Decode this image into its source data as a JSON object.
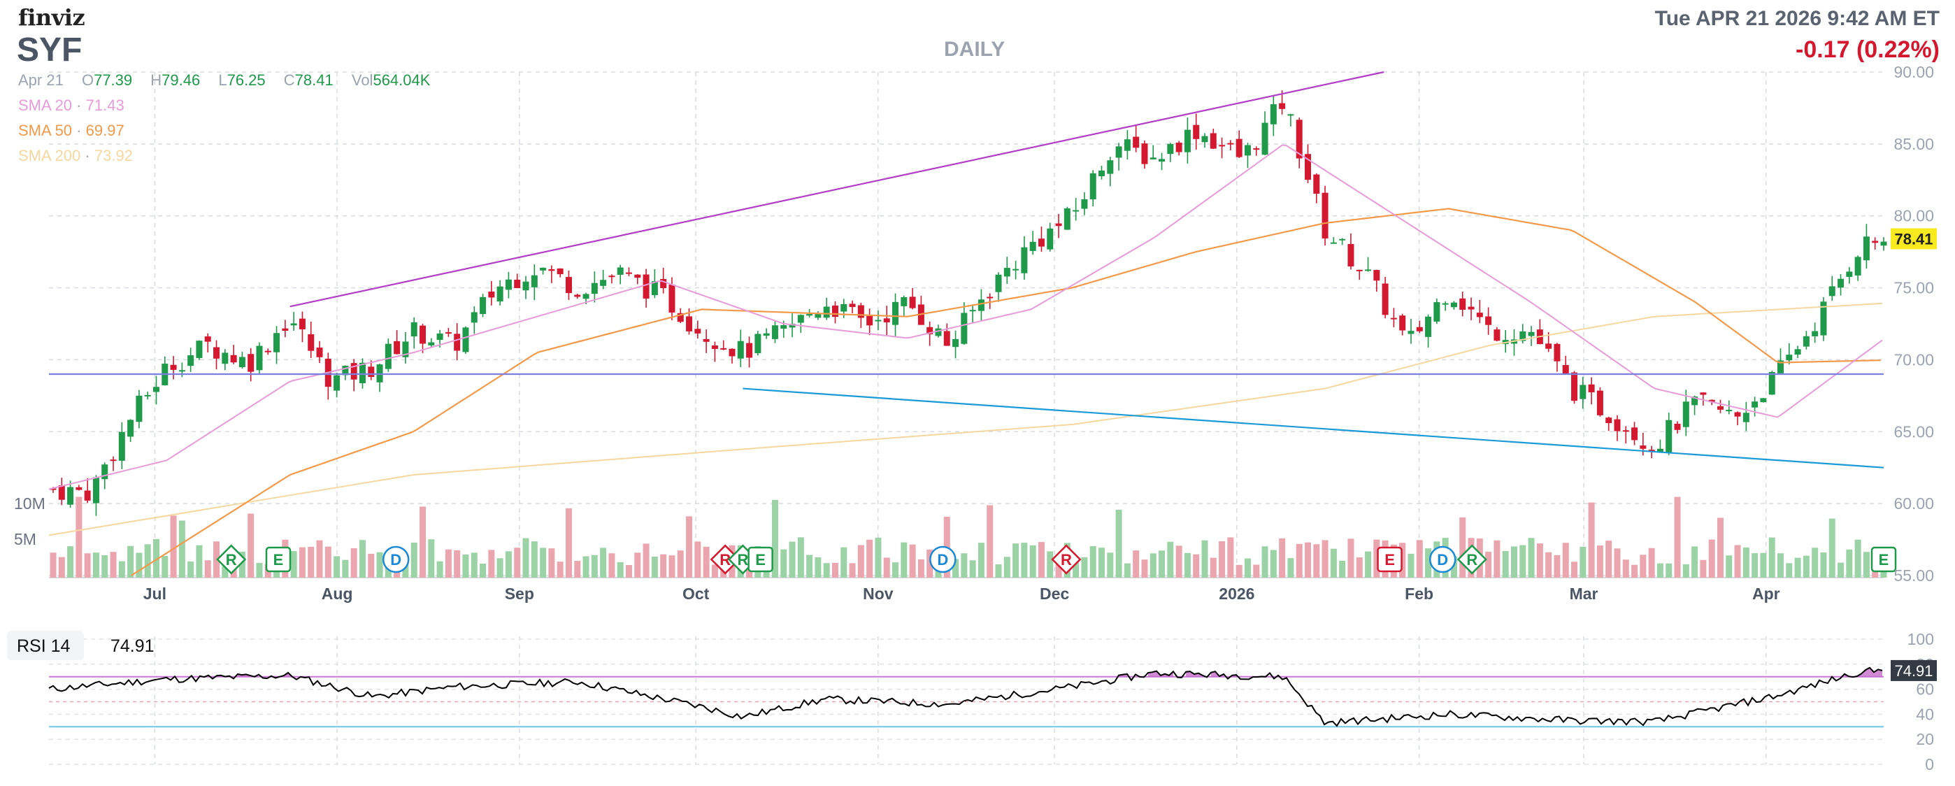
{
  "brand": "finviz",
  "ticker": "SYF",
  "period": "DAILY",
  "datetime": "Tue APR 21 2026 9:42 AM ET",
  "change": "-0.17 (0.22%)",
  "ohlc": {
    "date": "Apr 21",
    "open_label": "O",
    "open": "77.39",
    "high_label": "H",
    "high": "79.46",
    "low_label": "L",
    "low": "76.25",
    "close_label": "C",
    "close": "78.41",
    "vol_label": "Vol",
    "vol": "564.04K"
  },
  "smas": [
    {
      "label": "SMA 20",
      "sep": "·",
      "value": "71.43",
      "color": "#e79bd8"
    },
    {
      "label": "SMA 50",
      "sep": "·",
      "value": "69.97",
      "color": "#f39a4a"
    },
    {
      "label": "SMA 200",
      "sep": "·",
      "value": "73.92",
      "color": "#f5d7a0"
    }
  ],
  "rsi": {
    "label": "RSI 14",
    "value": "74.91"
  },
  "colors": {
    "up": "#1e9a4a",
    "down": "#d4182f",
    "vol_up": "#9bd3a6",
    "vol_down": "#eba5ae",
    "upper_trend": "#b33cc9",
    "lower_trend": "#1a9ad6",
    "horizontal": "#7b7fe0",
    "last_price_bg": "#f8ea1f",
    "rsi_line": "#000000",
    "rsi_fill": "#c264c6"
  },
  "chart_data": [
    {
      "type": "candlestick",
      "yaxis_ticks": [
        "90.00",
        "85.00",
        "80.00",
        "75.00",
        "70.00",
        "65.00",
        "60.00",
        "55.00"
      ],
      "ylim": [
        55,
        90
      ],
      "volume_ticks": [
        "10M",
        "5M"
      ],
      "xaxis_ticks": [
        "Jul",
        "Aug",
        "Sep",
        "Oct",
        "Nov",
        "Dec",
        "2026",
        "Feb",
        "Mar",
        "Apr"
      ],
      "last_price": "78.41",
      "series_close_anchors": [
        [
          "Jun 13",
          61.0
        ],
        [
          "Jun 20",
          60.8
        ],
        [
          "Jun 27",
          66.0
        ],
        [
          "Jul 3",
          69.5
        ],
        [
          "Jul 10",
          71.0
        ],
        [
          "Jul 17",
          69.8
        ],
        [
          "Jul 24",
          73.0
        ],
        [
          "Jul 31",
          68.5
        ],
        [
          "Aug 7",
          69.5
        ],
        [
          "Aug 14",
          72.0
        ],
        [
          "Aug 21",
          71.0
        ],
        [
          "Aug 28",
          75.0
        ],
        [
          "Sep 4",
          76.5
        ],
        [
          "Sep 11",
          75.0
        ],
        [
          "Sep 18",
          76.0
        ],
        [
          "Sep 25",
          74.5
        ],
        [
          "Oct 2",
          72.0
        ],
        [
          "Oct 9",
          70.5
        ],
        [
          "Oct 16",
          72.0
        ],
        [
          "Oct 23",
          74.0
        ],
        [
          "Oct 30",
          72.5
        ],
        [
          "Nov 6",
          74.0
        ],
        [
          "Nov 13",
          71.0
        ],
        [
          "Nov 20",
          75.0
        ],
        [
          "Nov 27",
          78.0
        ],
        [
          "Dec 4",
          80.0
        ],
        [
          "Dec 11",
          85.0
        ],
        [
          "Dec 18",
          84.0
        ],
        [
          "Dec 25",
          86.0
        ],
        [
          "Jan 2",
          84.0
        ],
        [
          "Jan 9",
          88.0
        ],
        [
          "Jan 16",
          79.0
        ],
        [
          "Jan 23",
          76.0
        ],
        [
          "Jan 30",
          71.0
        ],
        [
          "Feb 6",
          75.0
        ],
        [
          "Feb 13",
          72.0
        ],
        [
          "Feb 20",
          72.0
        ],
        [
          "Feb 27",
          68.0
        ],
        [
          "Mar 6",
          66.0
        ],
        [
          "Mar 13",
          64.0
        ],
        [
          "Mar 20",
          67.0
        ],
        [
          "Mar 27",
          66.0
        ],
        [
          "Apr 3",
          69.0
        ],
        [
          "Apr 10",
          73.0
        ],
        [
          "Apr 17",
          78.0
        ],
        [
          "Apr 21",
          78.41
        ]
      ],
      "sma20_anchors": [
        [
          "Jun 13",
          61.0
        ],
        [
          "Jul 3",
          63.0
        ],
        [
          "Jul 24",
          68.5
        ],
        [
          "Aug 14",
          70.5
        ],
        [
          "Sep 4",
          73.0
        ],
        [
          "Sep 25",
          75.5
        ],
        [
          "Oct 16",
          72.5
        ],
        [
          "Nov 6",
          71.5
        ],
        [
          "Nov 27",
          73.5
        ],
        [
          "Dec 18",
          78.5
        ],
        [
          "Jan 9",
          85.0
        ],
        [
          "Jan 30",
          79.5
        ],
        [
          "Feb 20",
          74.0
        ],
        [
          "Mar 13",
          68.0
        ],
        [
          "Apr 3",
          66.0
        ],
        [
          "Apr 21",
          71.43
        ]
      ],
      "sma50_anchors": [
        [
          "Jun 27",
          55.0
        ],
        [
          "Jul 24",
          62.0
        ],
        [
          "Aug 14",
          65.0
        ],
        [
          "Sep 4",
          70.5
        ],
        [
          "Oct 2",
          73.5
        ],
        [
          "Nov 6",
          73.0
        ],
        [
          "Dec 4",
          75.0
        ],
        [
          "Dec 25",
          77.5
        ],
        [
          "Jan 16",
          79.5
        ],
        [
          "Feb 6",
          80.5
        ],
        [
          "Feb 27",
          79.0
        ],
        [
          "Mar 20",
          74.0
        ],
        [
          "Apr 3",
          69.8
        ],
        [
          "Apr 21",
          69.97
        ]
      ],
      "sma200_anchors": [
        [
          "Jun 13",
          57.8
        ],
        [
          "Aug 14",
          62.0
        ],
        [
          "Oct 16",
          64.0
        ],
        [
          "Dec 4",
          65.5
        ],
        [
          "Jan 16",
          68.0
        ],
        [
          "Feb 13",
          71.0
        ],
        [
          "Mar 13",
          73.0
        ],
        [
          "Apr 21",
          73.92
        ]
      ],
      "trendlines": [
        {
          "from": [
            "Jul 24",
            73.7
          ],
          "to": [
            "Jan 26",
            90.0
          ],
          "color": "upper"
        },
        {
          "from": [
            "Oct 9",
            68.0
          ],
          "to": [
            "Apr 21",
            62.5
          ],
          "color": "lower"
        },
        {
          "from": [
            "Jun 13",
            69.0
          ],
          "to": [
            "Apr 21",
            69.0
          ],
          "color": "horizontal"
        }
      ],
      "event_markers": [
        {
          "letter": "R",
          "at": "Jul 14",
          "kind": "diamond",
          "color": "up"
        },
        {
          "letter": "E",
          "at": "Jul 22",
          "kind": "square",
          "color": "up"
        },
        {
          "letter": "D",
          "at": "Aug 11",
          "kind": "circle",
          "color": "blue"
        },
        {
          "letter": "R",
          "at": "Oct 6",
          "kind": "diamond",
          "color": "down"
        },
        {
          "letter": "R",
          "at": "Oct 9",
          "kind": "diamond",
          "color": "up"
        },
        {
          "letter": "E",
          "at": "Oct 12",
          "kind": "square",
          "color": "up"
        },
        {
          "letter": "D",
          "at": "Nov 12",
          "kind": "circle",
          "color": "blue"
        },
        {
          "letter": "R",
          "at": "Dec 3",
          "kind": "diamond",
          "color": "down"
        },
        {
          "letter": "E",
          "at": "Jan 27",
          "kind": "square",
          "color": "down"
        },
        {
          "letter": "D",
          "at": "Feb 5",
          "kind": "circle",
          "color": "blue"
        },
        {
          "letter": "R",
          "at": "Feb 10",
          "kind": "diamond",
          "color": "up"
        },
        {
          "letter": "E",
          "at": "Apr 21",
          "kind": "square",
          "color": "up"
        }
      ]
    },
    {
      "type": "line",
      "title": "RSI 14",
      "yaxis_ticks": [
        "100",
        "80",
        "60",
        "40",
        "20",
        "0"
      ],
      "ylim": [
        0,
        100
      ],
      "levels": [
        70,
        50,
        30
      ],
      "last_value": "74.91",
      "anchors": [
        [
          "Jun 13",
          60
        ],
        [
          "Jul 3",
          68
        ],
        [
          "Jul 24",
          71
        ],
        [
          "Aug 7",
          54
        ],
        [
          "Aug 21",
          62
        ],
        [
          "Sep 11",
          66
        ],
        [
          "Oct 2",
          46
        ],
        [
          "Oct 9",
          38
        ],
        [
          "Oct 23",
          52
        ],
        [
          "Nov 13",
          48
        ],
        [
          "Dec 4",
          62
        ],
        [
          "Dec 18",
          73
        ],
        [
          "Jan 9",
          70
        ],
        [
          "Jan 16",
          33
        ],
        [
          "Feb 6",
          40
        ],
        [
          "Feb 27",
          35
        ],
        [
          "Mar 13",
          34
        ],
        [
          "Apr 3",
          55
        ],
        [
          "Apr 17",
          74
        ],
        [
          "Apr 21",
          74.91
        ]
      ]
    }
  ]
}
